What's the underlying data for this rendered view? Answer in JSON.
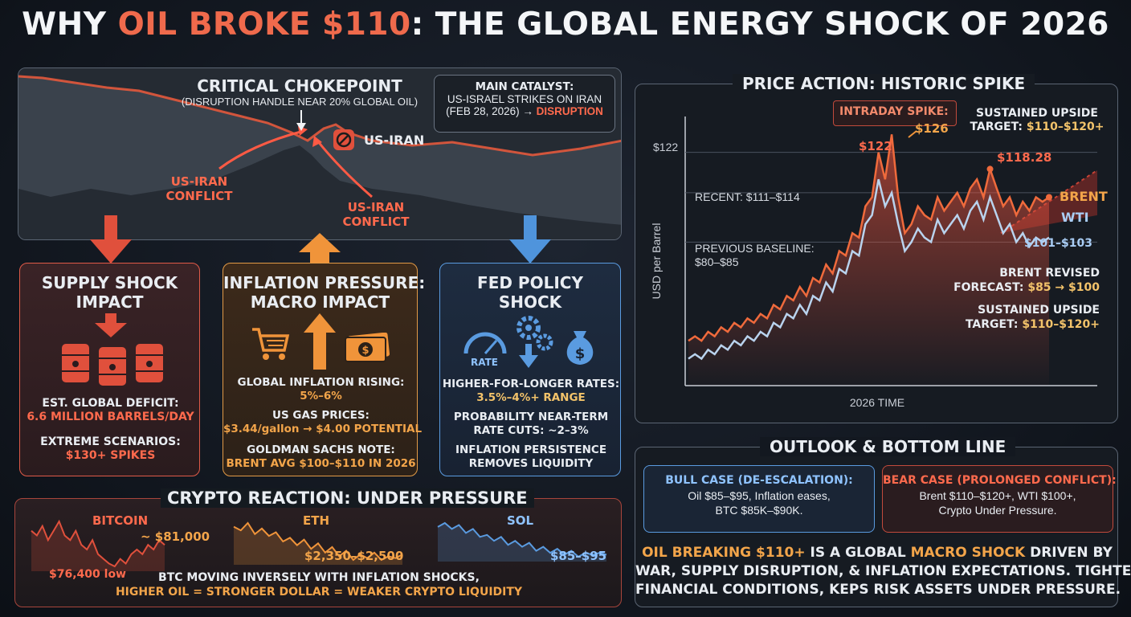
{
  "title": {
    "pre": "WHY ",
    "highlight": "OIL BROKE $110",
    "post": ": THE GLOBAL ENERGY SHOCK OF 2026"
  },
  "map": {
    "chokepoint_title": "CRITICAL CHOKEPOINT",
    "chokepoint_sub": "(DISRUPTION HANDLE NEAR 20% GLOBAL OIL)",
    "conflict_left_1": "US-IRAN",
    "conflict_left_2": "CONFLICT",
    "conflict_right_1": "US-IRAN",
    "conflict_right_2": "CONFLICT",
    "us_iran": "US-IRAN",
    "catalyst_1": "MAIN CATALYST:",
    "catalyst_2": "US-ISRAEL STRIKES ON IRAN",
    "catalyst_3": "(FEB 28, 2026) →",
    "catalyst_3_hl": "DISRUPTION"
  },
  "supply": {
    "title_1": "SUPPLY SHOCK",
    "title_2": "IMPACT",
    "deficit_label": "EST. GLOBAL DEFICIT:",
    "deficit_value": "6.6 MILLION BARRELS/DAY",
    "extreme_label": "EXTREME SCENARIOS:",
    "extreme_value": "$130+ SPIKES"
  },
  "inflation": {
    "title_1": "INFLATION PRESSURE:",
    "title_2": "MACRO IMPACT",
    "global_label": "GLOBAL INFLATION RISING:",
    "global_value": "5%–6%",
    "gas_label": "US GAS PRICES:",
    "gas_value": "$3.44/gallon → $4.00 POTENTIAL",
    "gs_label": "GOLDMAN SACHS NOTE:",
    "gs_value": "BRENT AVG $100–$110 IN 2026"
  },
  "fed": {
    "title_1": "FED POLICY",
    "title_2": "SHOCK",
    "rate_icon_label": "RATE",
    "rates_label": "HIGHER-FOR-LONGER RATES:",
    "rates_value": "3.5%–4%+ RANGE",
    "cuts_1": "PROBABILITY NEAR-TERM",
    "cuts_2": "RATE CUTS: ~2–3%",
    "persist_1": "INFLATION PERSISTENCE",
    "persist_2": "REMOVES LIQUIDITY"
  },
  "crypto": {
    "title": "CRYPTO REACTION: UNDER PRESSURE",
    "btc_name": "BITCOIN",
    "btc_price": "~ $81,000",
    "btc_low": "$76,400 low",
    "eth_name": "ETH",
    "eth_range": "$2,350–$2,500",
    "sol_name": "SOL",
    "sol_range": "$85–$95",
    "note_1": "BTC MOVING INVERSELY WITH INFLATION SHOCKS,",
    "note_2": "HIGHER OIL = STRONGER DOLLAR = WEAKER CRYPTO LIQUIDITY",
    "btc_series": [
      84,
      83,
      85,
      82,
      84,
      86,
      83,
      82,
      84,
      81,
      80,
      82,
      79,
      78,
      77,
      76.4,
      78,
      77,
      79,
      80,
      79,
      81,
      80,
      82,
      81
    ],
    "eth_series": [
      2620,
      2600,
      2640,
      2580,
      2610,
      2570,
      2590,
      2540,
      2560,
      2520,
      2550,
      2500,
      2530,
      2480,
      2510,
      2460,
      2490,
      2440,
      2470,
      2450,
      2480,
      2440,
      2460,
      2450,
      2470
    ],
    "sol_series": [
      104,
      106,
      103,
      105,
      101,
      103,
      99,
      100,
      97,
      99,
      95,
      97,
      94,
      96,
      92,
      94,
      91,
      93,
      90,
      92,
      89,
      91,
      90,
      91,
      90
    ]
  },
  "price": {
    "title": "PRICE ACTION: HISTORIC SPIKE",
    "intraday": "INTRADAY SPIKE:",
    "intraday_value": "$126",
    "peak_122": "$122",
    "ytick_122": "$122",
    "sustained_1": "SUSTAINED UPSIDE",
    "sustained_2_pre": "TARGET: ",
    "sustained_2_val": "$110–$120+",
    "p11828": "$118.28",
    "brent": "BRENT",
    "wti": "WTI",
    "wti_range": "$101–$103",
    "recent": "RECENT: $111–$114",
    "prev_1": "PREVIOUS BASELINE:",
    "prev_2": "$80–$85",
    "brent_rev_1": "BRENT REVISED",
    "brent_rev_2_pre": "FORECAST: ",
    "brent_rev_2_val": "$85 → $100",
    "sustained2_1": "SUSTAINED UPSIDE",
    "sustained2_2_pre": "TARGET: ",
    "sustained2_2_val": "$110–$120+",
    "ylabel": "USD per Barrel",
    "xlabel": "2026 TIME"
  },
  "chart_data": {
    "type": "line",
    "title": "PRICE ACTION: HISTORIC SPIKE",
    "xlabel": "2026 TIME",
    "ylabel": "USD per Barrel",
    "ylim": [
      70,
      130
    ],
    "series": [
      {
        "name": "BRENT",
        "values": [
          80,
          81,
          80,
          82,
          81,
          83,
          82,
          84,
          83,
          85,
          84,
          86,
          85,
          88,
          87,
          90,
          89,
          92,
          90,
          94,
          93,
          97,
          95,
          100,
          99,
          104,
          103,
          110,
          112,
          122,
          116,
          126,
          112,
          104,
          106,
          110,
          108,
          107,
          112,
          109,
          111,
          113,
          110,
          114,
          116,
          112,
          118.28,
          114,
          110,
          112,
          108,
          111,
          109,
          112,
          111,
          112
        ]
      },
      {
        "name": "WTI",
        "values": [
          76,
          77,
          76,
          78,
          77,
          79,
          78,
          80,
          79,
          81,
          80,
          82,
          81,
          84,
          83,
          86,
          85,
          88,
          86,
          90,
          89,
          93,
          91,
          96,
          95,
          100,
          99,
          106,
          108,
          116,
          110,
          113,
          106,
          100,
          102,
          105,
          103,
          102,
          107,
          104,
          106,
          108,
          105,
          109,
          111,
          107,
          112,
          108,
          104,
          106,
          102,
          104,
          101,
          103,
          102,
          103
        ]
      }
    ]
  },
  "outlook": {
    "title": "OUTLOOK & BOTTOM LINE",
    "bull_title": "BULL CASE (DE-ESCALATION):",
    "bull_1": "Oil $85–$95, Inflation eases,",
    "bull_2": "BTC $85K–$90K.",
    "bear_title": "BEAR CASE (PROLONGED CONFLICT):",
    "bear_1": "Brent $110–$120+, WTI $100+,",
    "bear_2": "Crypto Under Pressure.",
    "bl_1a": "OIL BREAKING $110+",
    "bl_1b": " IS A GLOBAL ",
    "bl_1c": "MACRO SHOCK",
    "bl_1d": " DRIVEN BY",
    "bl_2": "WAR, SUPPLY DISRUPTION, & INFLATION EXPECTATIONS. TIGHTENS",
    "bl_3": "FINANCIAL CONDITIONS, KEPS RISK ASSETS UNDER PRESSURE."
  }
}
